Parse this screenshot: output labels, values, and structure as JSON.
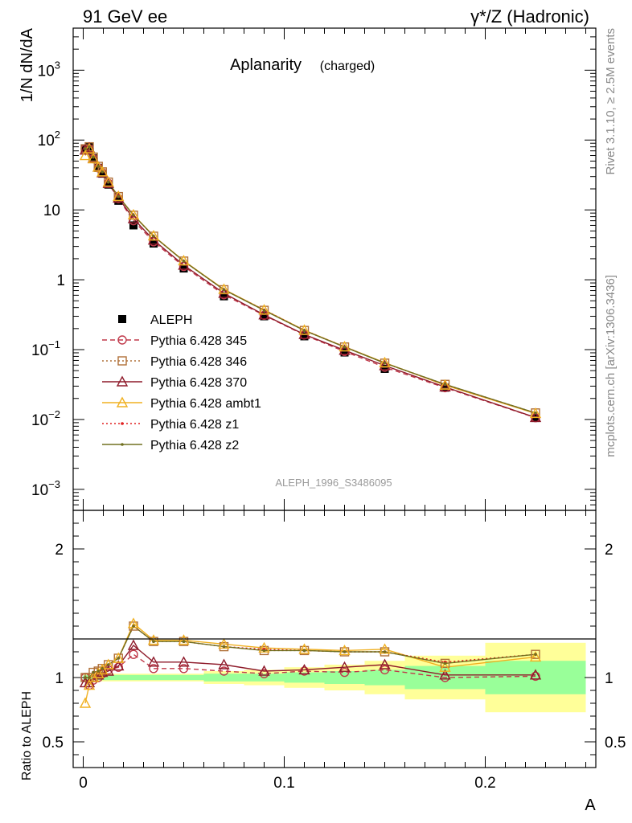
{
  "header": {
    "left": "91 GeV ee",
    "right": "γ*/Z (Hadronic)"
  },
  "side_text": {
    "rivet": "Rivet 3.1.10, ≥ 2.5M events",
    "mcplots": "mcplots.cern.ch [arXiv:1306.3436]"
  },
  "chart_data": [
    {
      "type": "line",
      "panel": "main",
      "title": "Aplanarity",
      "subtitle": "(charged)",
      "ylabel": "1/N dN/dA",
      "yscale": "log",
      "ylim": [
        0.0005,
        4000
      ],
      "xlim": [
        -0.005,
        0.255
      ],
      "analysis_label": "ALEPH_1996_S3486095",
      "y_ticks": [
        {
          "v": 0.001,
          "base": "10",
          "exp": "−3"
        },
        {
          "v": 0.01,
          "base": "10",
          "exp": "−2"
        },
        {
          "v": 0.1,
          "base": "10",
          "exp": "−1"
        },
        {
          "v": 1,
          "base": "1",
          "exp": ""
        },
        {
          "v": 10,
          "base": "10",
          "exp": ""
        },
        {
          "v": 100,
          "base": "10",
          "exp": "2"
        },
        {
          "v": 1000,
          "base": "10",
          "exp": "3"
        }
      ],
      "x": [
        0.001,
        0.003,
        0.005,
        0.0075,
        0.0095,
        0.0125,
        0.0175,
        0.025,
        0.035,
        0.05,
        0.07,
        0.09,
        0.11,
        0.13,
        0.15,
        0.18,
        0.225
      ],
      "series": [
        {
          "name": "ALEPH",
          "color": "#000000",
          "marker": "square-filled",
          "line": "none",
          "values": [
            75,
            80,
            55,
            40,
            33,
            23,
            13.5,
            6.0,
            3.3,
            1.45,
            0.58,
            0.3,
            0.155,
            0.091,
            0.053,
            0.0285,
            0.0105
          ]
        },
        {
          "name": "Pythia 6.428 345",
          "color": "#c0394a",
          "marker": "circle-open",
          "line": "dashed",
          "values": [
            75,
            75,
            54,
            40,
            34,
            24,
            14.5,
            7.0,
            3.5,
            1.55,
            0.61,
            0.31,
            0.162,
            0.094,
            0.056,
            0.0285,
            0.0106
          ]
        },
        {
          "name": "Pythia 6.428 346",
          "color": "#b07038",
          "marker": "square-open",
          "line": "dotted",
          "values": [
            75,
            80,
            57,
            42,
            35,
            25,
            15.5,
            8.4,
            4.2,
            1.85,
            0.72,
            0.365,
            0.188,
            0.109,
            0.064,
            0.0318,
            0.0124
          ]
        },
        {
          "name": "Pythia 6.428 370",
          "color": "#8e1a2a",
          "marker": "triangle-open",
          "line": "solid",
          "values": [
            72,
            77,
            55,
            41,
            34,
            24,
            14.8,
            7.5,
            3.7,
            1.62,
            0.64,
            0.315,
            0.165,
            0.098,
            0.059,
            0.0292,
            0.0107
          ]
        },
        {
          "name": "Pythia 6.428 ambt1",
          "color": "#f0b020",
          "marker": "triangle-open",
          "line": "solid",
          "values": [
            60,
            75,
            54,
            41,
            35,
            25,
            15.6,
            8.5,
            4.25,
            1.87,
            0.73,
            0.37,
            0.19,
            0.11,
            0.065,
            0.031,
            0.0122
          ]
        },
        {
          "name": "Pythia 6.428 z1",
          "color": "#e02020",
          "marker": "dot",
          "line": "dotted",
          "values": [
            75,
            80,
            57,
            42,
            35,
            25,
            15.5,
            8.4,
            4.2,
            1.85,
            0.72,
            0.37,
            0.189,
            0.11,
            0.064,
            0.0315,
            0.0124
          ]
        },
        {
          "name": "Pythia 6.428 z2",
          "color": "#707020",
          "marker": "dot",
          "line": "solid",
          "values": [
            75,
            80,
            57,
            42,
            35,
            25,
            15.5,
            8.4,
            4.2,
            1.85,
            0.72,
            0.365,
            0.188,
            0.109,
            0.064,
            0.0318,
            0.0124
          ]
        }
      ]
    },
    {
      "type": "line",
      "panel": "ratio",
      "ylabel": "Ratio to ALEPH",
      "xlabel": "A",
      "ylim": [
        0.3,
        2.3
      ],
      "xlim": [
        -0.005,
        0.255
      ],
      "y_tick_labels": [
        {
          "v": 0.5,
          "label": "0.5"
        },
        {
          "v": 1,
          "label": "1"
        },
        {
          "v": 2,
          "label": "2"
        }
      ],
      "x_tick_labels": [
        {
          "v": 0,
          "label": "0"
        },
        {
          "v": 0.1,
          "label": "0.1"
        },
        {
          "v": 0.2,
          "label": "0.2"
        }
      ],
      "x": [
        0.001,
        0.003,
        0.005,
        0.0075,
        0.0095,
        0.0125,
        0.0175,
        0.025,
        0.035,
        0.05,
        0.07,
        0.09,
        0.11,
        0.13,
        0.15,
        0.18,
        0.225
      ],
      "bin_edges": [
        0,
        0.002,
        0.004,
        0.006,
        0.009,
        0.01,
        0.015,
        0.02,
        0.03,
        0.04,
        0.06,
        0.08,
        0.1,
        0.12,
        0.14,
        0.16,
        0.2,
        0.25
      ],
      "band_stat": [
        0.02,
        0.02,
        0.02,
        0.02,
        0.02,
        0.02,
        0.02,
        0.02,
        0.02,
        0.02,
        0.03,
        0.03,
        0.04,
        0.05,
        0.06,
        0.09,
        0.13
      ],
      "band_total": [
        0.03,
        0.03,
        0.03,
        0.03,
        0.03,
        0.03,
        0.03,
        0.03,
        0.03,
        0.03,
        0.05,
        0.06,
        0.08,
        0.1,
        0.13,
        0.17,
        0.27
      ],
      "series": [
        {
          "name": "Pythia 6.428 345",
          "values": [
            1.0,
            0.94,
            0.98,
            1.0,
            1.03,
            1.06,
            1.08,
            1.18,
            1.07,
            1.07,
            1.05,
            1.03,
            1.05,
            1.04,
            1.06,
            1.0,
            1.01
          ]
        },
        {
          "name": "Pythia 6.428 346",
          "values": [
            1.0,
            1.0,
            1.04,
            1.05,
            1.07,
            1.1,
            1.15,
            1.4,
            1.28,
            1.28,
            1.24,
            1.21,
            1.21,
            1.2,
            1.2,
            1.11,
            1.18
          ]
        },
        {
          "name": "Pythia 6.428 370",
          "values": [
            0.96,
            0.96,
            1.0,
            1.02,
            1.04,
            1.05,
            1.09,
            1.25,
            1.12,
            1.12,
            1.1,
            1.05,
            1.06,
            1.08,
            1.1,
            1.02,
            1.02
          ]
        },
        {
          "name": "Pythia 6.428 ambt1",
          "values": [
            0.8,
            0.94,
            1.0,
            1.03,
            1.06,
            1.1,
            1.15,
            1.42,
            1.29,
            1.29,
            1.26,
            1.23,
            1.22,
            1.21,
            1.22,
            1.08,
            1.16
          ]
        },
        {
          "name": "Pythia 6.428 z1",
          "values": [
            1.0,
            1.0,
            1.04,
            1.05,
            1.07,
            1.1,
            1.15,
            1.4,
            1.28,
            1.28,
            1.24,
            1.22,
            1.21,
            1.2,
            1.2,
            1.12,
            1.18
          ]
        },
        {
          "name": "Pythia 6.428 z2",
          "values": [
            1.0,
            1.0,
            1.04,
            1.05,
            1.07,
            1.1,
            1.15,
            1.4,
            1.28,
            1.28,
            1.24,
            1.21,
            1.21,
            1.2,
            1.2,
            1.11,
            1.18
          ]
        }
      ]
    }
  ]
}
